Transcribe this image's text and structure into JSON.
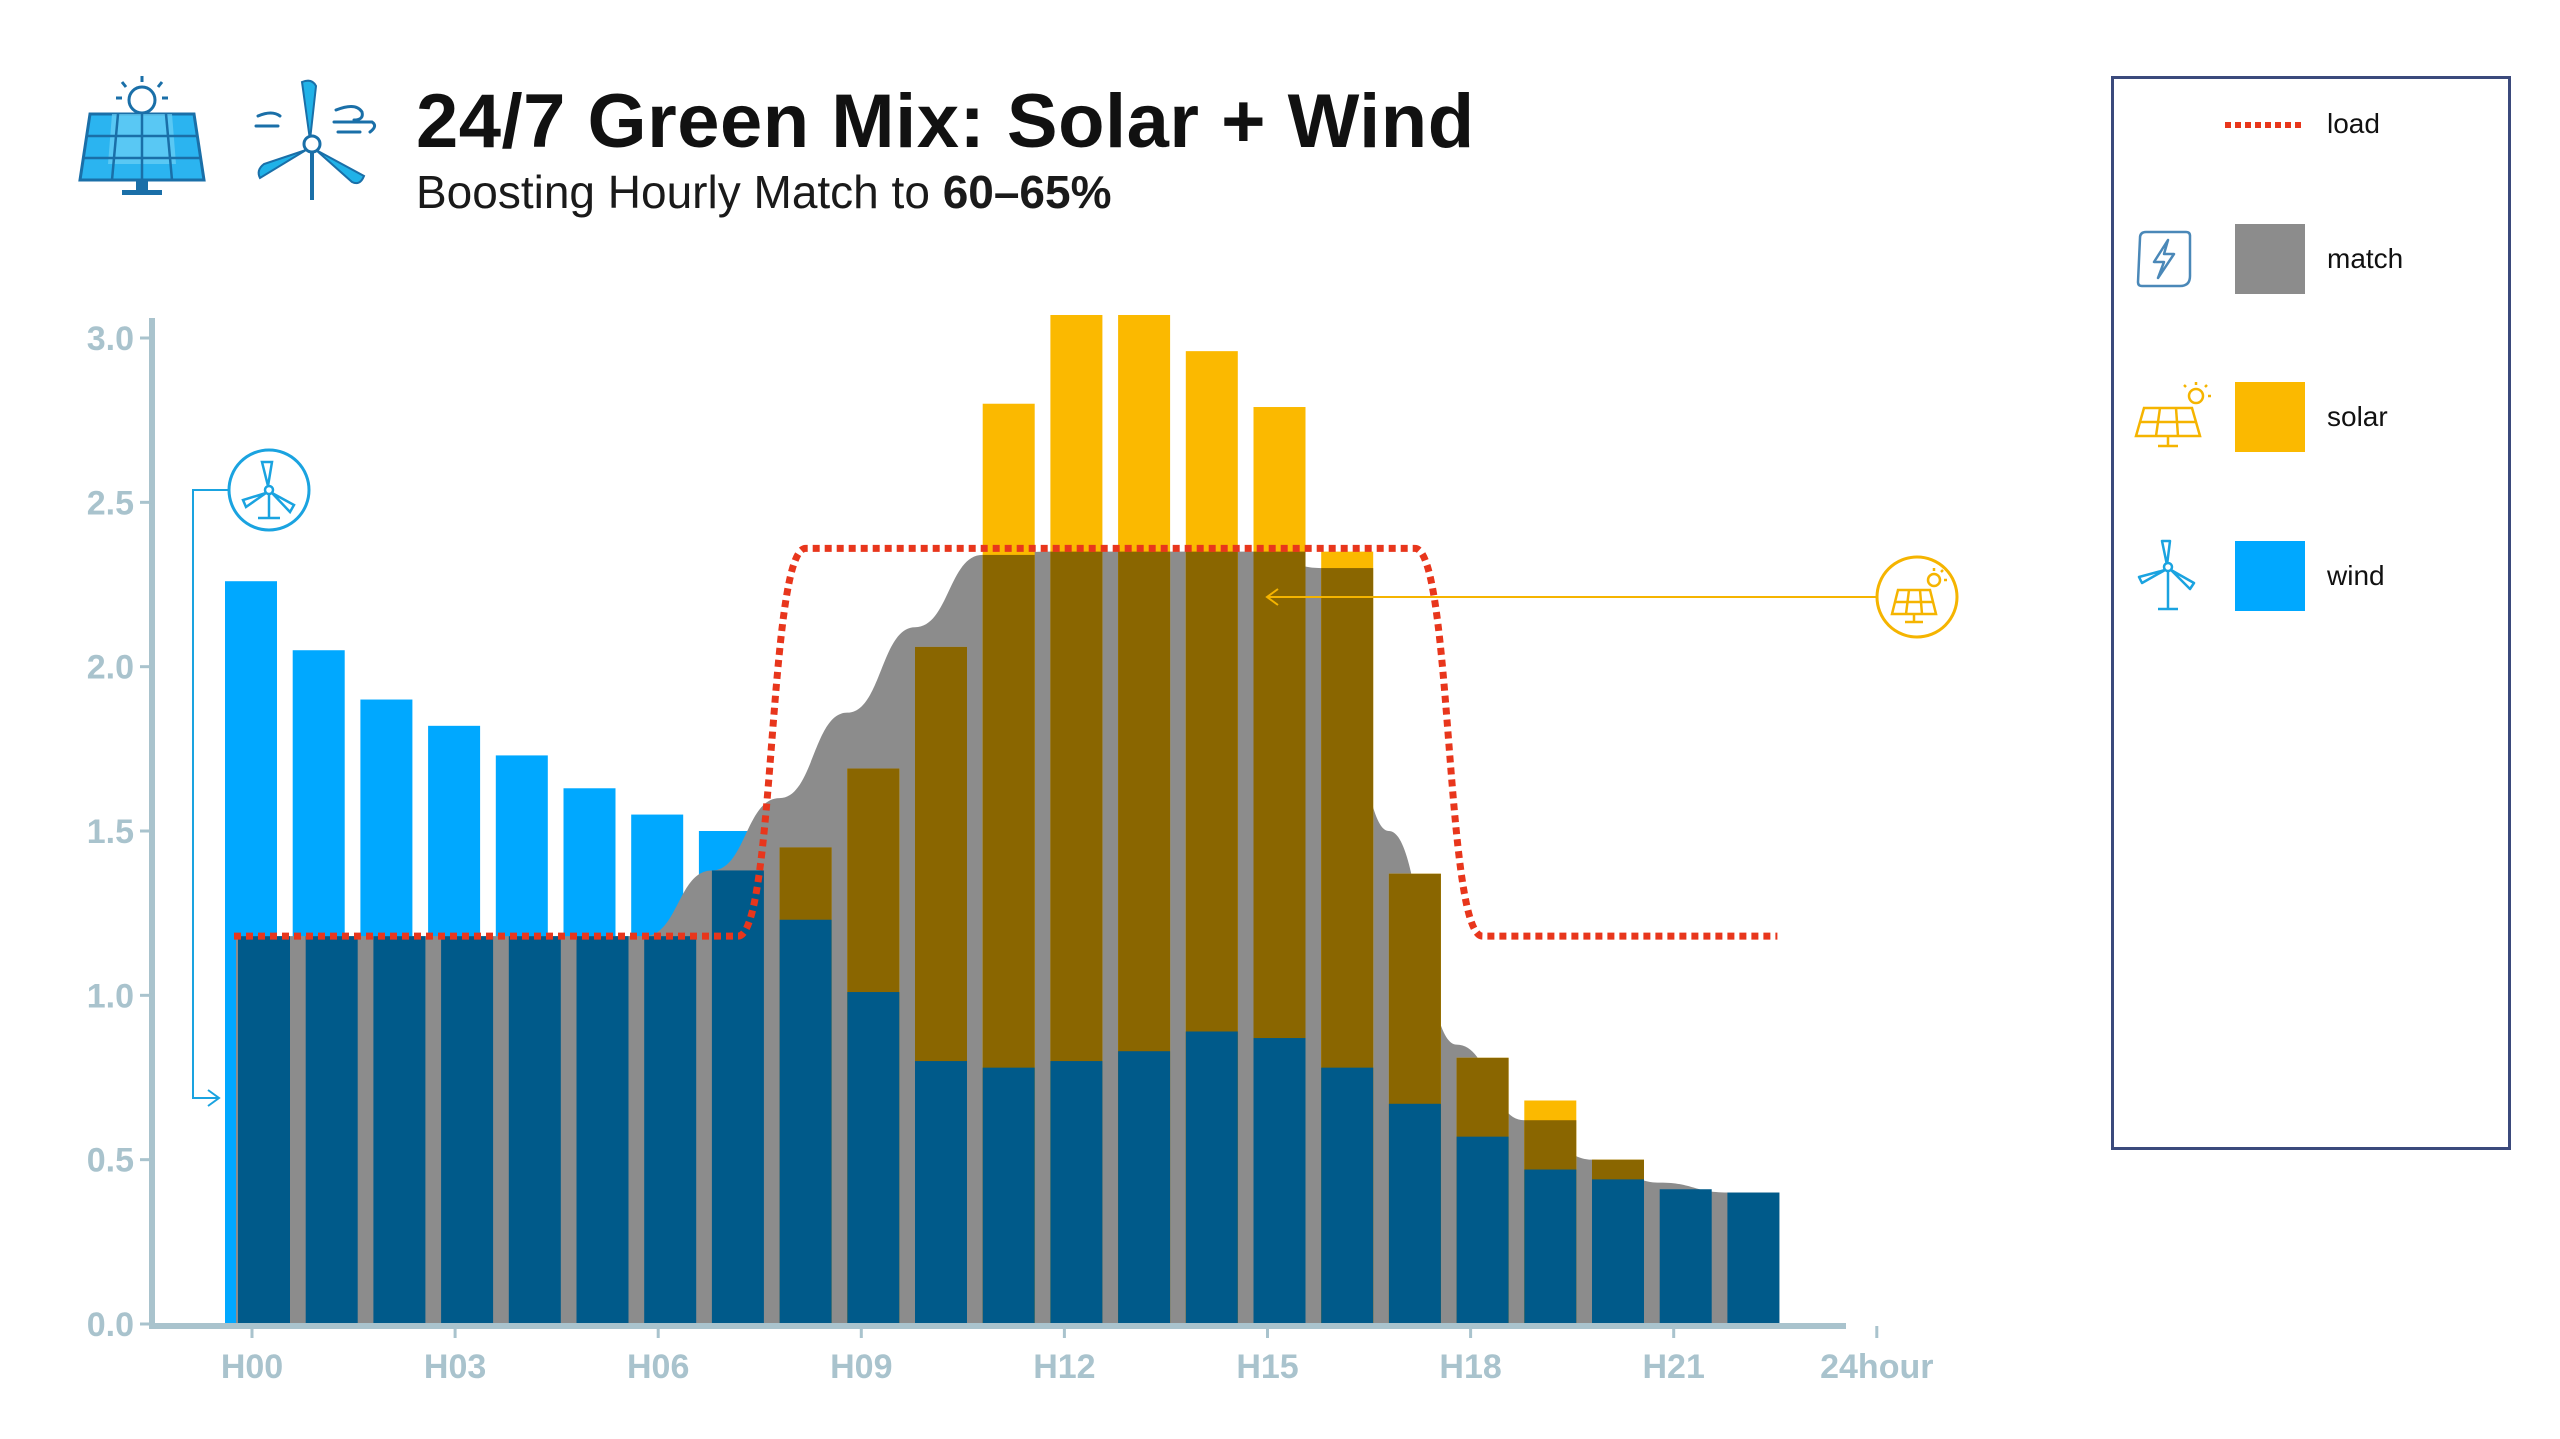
{
  "header": {
    "title": "24/7 Green Mix: Solar + Wind",
    "subtitle_prefix": "Boosting Hourly Match to ",
    "subtitle_bold": "60–65%"
  },
  "legend": {
    "items": [
      {
        "key": "load",
        "label": "load",
        "color": "#e8361c",
        "icon": "none"
      },
      {
        "key": "match",
        "label": "match",
        "color": "#8c8c8c",
        "icon": "lightning-panel-icon"
      },
      {
        "key": "solar",
        "label": "solar",
        "color": "#fbb900",
        "icon": "solar-panel-icon"
      },
      {
        "key": "wind",
        "label": "wind",
        "color": "#00a8ff",
        "icon": "wind-turbine-icon"
      }
    ]
  },
  "colors": {
    "wind": "#00a8ff",
    "wind_dark": "#005a8a",
    "solar": "#fbb900",
    "solar_dark": "#8a6600",
    "match": "#8c8c8c",
    "load": "#e8361c",
    "axis": "#a9c3cd",
    "tick_text": "#a9c3cd",
    "solar_icon": "#f5b400",
    "wind_icon": "#1aa3e0"
  },
  "chart_data": {
    "type": "bar",
    "title": "24/7 Green Mix: Solar + Wind",
    "xlabel": "",
    "ylabel": "",
    "ylim": [
      0,
      3.05
    ],
    "yticks": [
      "0.0",
      "0.5",
      "1.0",
      "1.5",
      "2.0",
      "2.5",
      "3.0"
    ],
    "xticks": [
      "H00",
      "H03",
      "H06",
      "H09",
      "H12",
      "H15",
      "H18",
      "H21",
      "24hour"
    ],
    "categories": [
      "H00",
      "H01",
      "H02",
      "H03",
      "H04",
      "H05",
      "H06",
      "H07",
      "H08",
      "H09",
      "H10",
      "H11",
      "H12",
      "H13",
      "H14",
      "H15",
      "H16",
      "H17",
      "H18",
      "H19",
      "H20",
      "H21",
      "H22"
    ],
    "series": [
      {
        "name": "wind",
        "values": [
          2.26,
          2.05,
          1.9,
          1.82,
          1.73,
          1.63,
          1.55,
          1.5,
          1.23,
          1.01,
          0.8,
          0.78,
          0.8,
          0.83,
          0.89,
          0.87,
          0.78,
          0.67,
          0.57,
          0.47,
          0.44,
          0.41,
          0.4
        ]
      },
      {
        "name": "solar",
        "values": [
          0,
          0,
          0,
          0,
          0,
          0,
          0,
          0,
          1.45,
          1.69,
          2.06,
          2.8,
          3.07,
          3.07,
          2.96,
          2.79,
          2.35,
          1.37,
          0.81,
          0.68,
          0.5,
          0,
          0
        ]
      },
      {
        "name": "match",
        "values": [
          1.18,
          1.18,
          1.18,
          1.18,
          1.18,
          1.18,
          1.18,
          1.38,
          1.6,
          1.86,
          2.12,
          2.34,
          2.35,
          2.35,
          2.35,
          2.35,
          2.3,
          1.5,
          0.85,
          0.62,
          0.5,
          0.43,
          0.4
        ]
      },
      {
        "name": "load",
        "values": [
          1.18,
          1.18,
          1.18,
          1.18,
          1.18,
          1.18,
          1.18,
          1.18,
          2.36,
          2.36,
          2.36,
          2.36,
          2.36,
          2.36,
          2.36,
          2.36,
          2.36,
          2.36,
          1.18,
          1.18,
          1.18,
          1.18,
          1.18
        ]
      }
    ]
  }
}
